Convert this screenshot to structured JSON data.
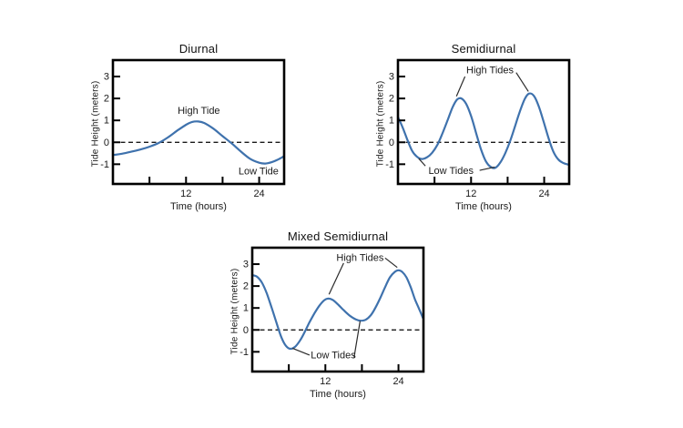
{
  "figure": {
    "background": "#ffffff",
    "description_texts": {
      "y_axis_label": "Tide Height (meters)",
      "x_axis_label": "Time (hours)"
    }
  },
  "colors": {
    "curve": "#3f72ad",
    "axis": "#000000",
    "zero_line": "#1a1a1a",
    "text": "#1a1a1a",
    "pointer_line": "#2b2b2b"
  },
  "chart_data": [
    {
      "type": "line",
      "title": "Diurnal",
      "xlabel": "Time (hours)",
      "ylabel": "Tide Height (meters)",
      "xlim": [
        0,
        28.1
      ],
      "ylim": [
        -1.9,
        3.75
      ],
      "xticks": [
        6,
        12,
        18,
        24
      ],
      "xtick_labels": [
        "",
        "12",
        "",
        "24"
      ],
      "yticks": [
        3,
        2,
        1,
        0,
        -1
      ],
      "grid": false,
      "zero_dashed_line": true,
      "legend": "none",
      "series": [
        {
          "name": "Tide height",
          "points": [
            [
              0,
              -0.58
            ],
            [
              1.5,
              -0.52
            ],
            [
              3,
              -0.43
            ],
            [
              4.5,
              -0.33
            ],
            [
              6,
              -0.2
            ],
            [
              7.5,
              -0.03
            ],
            [
              9,
              0.22
            ],
            [
              10.5,
              0.52
            ],
            [
              12,
              0.8
            ],
            [
              13,
              0.93
            ],
            [
              14,
              0.95
            ],
            [
              15,
              0.88
            ],
            [
              16.5,
              0.62
            ],
            [
              18,
              0.28
            ],
            [
              19.5,
              -0.05
            ],
            [
              21,
              -0.42
            ],
            [
              22.5,
              -0.75
            ],
            [
              24,
              -0.93
            ],
            [
              25,
              -0.97
            ],
            [
              26,
              -0.91
            ],
            [
              27,
              -0.8
            ],
            [
              28,
              -0.65
            ]
          ]
        }
      ],
      "annotations": [
        {
          "text": "High Tide",
          "x": 14.1,
          "y": 1.45,
          "lines": []
        },
        {
          "text": "Low Tide",
          "x": 23.9,
          "y": -1.32,
          "lines": []
        }
      ]
    },
    {
      "type": "line",
      "title": "Semidiurnal",
      "xlabel": "Time (hours)",
      "ylabel": "Tide Height (meters)",
      "xlim": [
        0,
        28.1
      ],
      "ylim": [
        -1.9,
        3.75
      ],
      "xticks": [
        6,
        12,
        18,
        24
      ],
      "xtick_labels": [
        "",
        "12",
        "",
        "24"
      ],
      "yticks": [
        3,
        2,
        1,
        0,
        -1
      ],
      "grid": false,
      "zero_dashed_line": true,
      "legend": "none",
      "series": [
        {
          "name": "Tide height",
          "points": [
            [
              0,
              1.15
            ],
            [
              0.7,
              0.72
            ],
            [
              1.5,
              0.15
            ],
            [
              2.3,
              -0.38
            ],
            [
              3,
              -0.63
            ],
            [
              3.9,
              -0.76
            ],
            [
              4.8,
              -0.68
            ],
            [
              5.6,
              -0.48
            ],
            [
              6.5,
              -0.1
            ],
            [
              7.3,
              0.4
            ],
            [
              8.2,
              1.05
            ],
            [
              9,
              1.62
            ],
            [
              9.7,
              1.95
            ],
            [
              10.4,
              2.0
            ],
            [
              11.2,
              1.75
            ],
            [
              12,
              1.2
            ],
            [
              12.8,
              0.45
            ],
            [
              13.6,
              -0.3
            ],
            [
              14.4,
              -0.85
            ],
            [
              15.2,
              -1.12
            ],
            [
              16,
              -1.16
            ],
            [
              16.8,
              -0.92
            ],
            [
              17.6,
              -0.5
            ],
            [
              18.4,
              0.05
            ],
            [
              19.2,
              0.72
            ],
            [
              20,
              1.4
            ],
            [
              20.8,
              1.97
            ],
            [
              21.5,
              2.22
            ],
            [
              22.3,
              2.12
            ],
            [
              23.1,
              1.65
            ],
            [
              23.9,
              0.95
            ],
            [
              24.7,
              0.2
            ],
            [
              25.5,
              -0.42
            ],
            [
              26.3,
              -0.78
            ],
            [
              27.1,
              -0.94
            ],
            [
              28,
              -1.02
            ]
          ]
        }
      ],
      "annotations": [
        {
          "text": "High Tides",
          "x": 15.1,
          "y": 3.3,
          "lines": [
            [
              11.0,
              3.0,
              9.6,
              2.1
            ],
            [
              19.4,
              3.18,
              21.4,
              2.32
            ]
          ]
        },
        {
          "text": "Low Tides",
          "x": 8.7,
          "y": -1.3,
          "lines": [
            [
              4.5,
              -1.08,
              3.4,
              -0.74
            ],
            [
              13.4,
              -1.28,
              15.9,
              -1.13
            ]
          ]
        }
      ]
    },
    {
      "type": "line",
      "title": "Mixed Semidiurnal",
      "xlabel": "Time (hours)",
      "ylabel": "Tide Height (meters)",
      "xlim": [
        0,
        28.1
      ],
      "ylim": [
        -1.9,
        3.75
      ],
      "xticks": [
        6,
        12,
        18,
        24
      ],
      "xtick_labels": [
        "",
        "12",
        "",
        "24"
      ],
      "yticks": [
        3,
        2,
        1,
        0,
        -1
      ],
      "grid": false,
      "zero_dashed_line": true,
      "legend": "none",
      "series": [
        {
          "name": "Tide height",
          "points": [
            [
              0,
              2.5
            ],
            [
              0.8,
              2.42
            ],
            [
              1.6,
              2.15
            ],
            [
              2.4,
              1.65
            ],
            [
              3.2,
              1.0
            ],
            [
              4,
              0.3
            ],
            [
              4.8,
              -0.35
            ],
            [
              5.5,
              -0.72
            ],
            [
              6.2,
              -0.86
            ],
            [
              7,
              -0.78
            ],
            [
              7.8,
              -0.5
            ],
            [
              8.6,
              -0.1
            ],
            [
              9.4,
              0.35
            ],
            [
              10.2,
              0.75
            ],
            [
              11,
              1.1
            ],
            [
              11.8,
              1.35
            ],
            [
              12.5,
              1.43
            ],
            [
              13.2,
              1.37
            ],
            [
              14,
              1.18
            ],
            [
              15,
              0.9
            ],
            [
              16,
              0.65
            ],
            [
              17,
              0.48
            ],
            [
              17.8,
              0.42
            ],
            [
              18.6,
              0.46
            ],
            [
              19.4,
              0.65
            ],
            [
              20.2,
              1.0
            ],
            [
              21,
              1.45
            ],
            [
              21.8,
              1.95
            ],
            [
              22.6,
              2.4
            ],
            [
              23.4,
              2.65
            ],
            [
              24,
              2.72
            ],
            [
              24.6,
              2.65
            ],
            [
              25.3,
              2.4
            ],
            [
              26,
              1.95
            ],
            [
              26.7,
              1.4
            ],
            [
              27.4,
              0.95
            ],
            [
              28,
              0.55
            ]
          ]
        }
      ],
      "annotations": [
        {
          "text": "High Tides",
          "x": 17.7,
          "y": 3.3,
          "lines": [
            [
              15.0,
              3.05,
              12.6,
              1.62
            ],
            [
              21.8,
              3.28,
              23.8,
              2.85
            ]
          ]
        },
        {
          "text": "Low Tides",
          "x": 13.3,
          "y": -1.15,
          "lines": [
            [
              9.4,
              -1.15,
              6.6,
              -0.84
            ],
            [
              16.7,
              -1.27,
              17.7,
              0.4
            ]
          ]
        }
      ]
    }
  ]
}
